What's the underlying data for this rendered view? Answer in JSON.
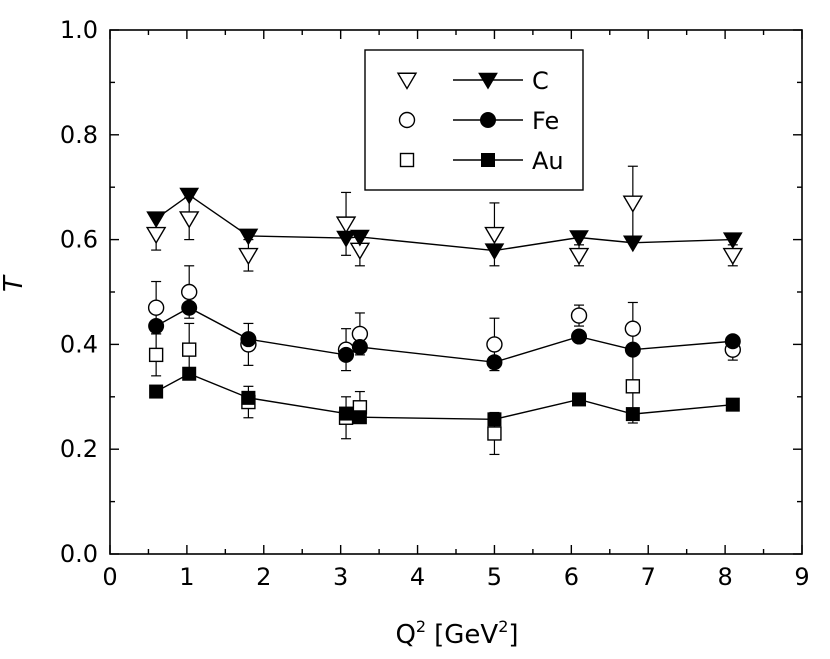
{
  "chart_data": {
    "type": "scatter",
    "xlabel": "Q",
    "xlabel_sup": "2",
    "xlabel_unit_open": "[GeV",
    "xlabel_unit_sup": "2",
    "xlabel_unit_close": "]",
    "ylabel": "T",
    "xlim": [
      0,
      9
    ],
    "ylim": [
      0.0,
      1.0
    ],
    "x_ticks": [
      "0",
      "1",
      "2",
      "3",
      "4",
      "5",
      "6",
      "7",
      "8",
      "9"
    ],
    "y_ticks": [
      "0.0",
      "0.2",
      "0.4",
      "0.6",
      "0.8",
      "1.0"
    ],
    "legend_position": "top-center",
    "grid": false,
    "series": [
      {
        "name": "C",
        "open_marker": "triangle-down",
        "filled_marker": "triangle-down",
        "open": [
          {
            "x": 0.6,
            "y": 0.61,
            "err": 0.03
          },
          {
            "x": 1.03,
            "y": 0.64,
            "err": 0.04
          },
          {
            "x": 1.8,
            "y": 0.57,
            "err": 0.03
          },
          {
            "x": 3.07,
            "y": 0.63,
            "err": 0.06
          },
          {
            "x": 3.25,
            "y": 0.58,
            "err": 0.03
          },
          {
            "x": 5.0,
            "y": 0.61,
            "err": 0.06
          },
          {
            "x": 6.1,
            "y": 0.57,
            "err": 0.02
          },
          {
            "x": 6.8,
            "y": 0.67,
            "err": 0.07
          },
          {
            "x": 8.1,
            "y": 0.57,
            "err": 0.02
          }
        ],
        "filled": [
          {
            "x": 0.6,
            "y": 0.64
          },
          {
            "x": 1.03,
            "y": 0.685
          },
          {
            "x": 1.8,
            "y": 0.607
          },
          {
            "x": 3.07,
            "y": 0.603
          },
          {
            "x": 3.25,
            "y": 0.605
          },
          {
            "x": 5.0,
            "y": 0.579
          },
          {
            "x": 6.1,
            "y": 0.604
          },
          {
            "x": 6.8,
            "y": 0.594
          },
          {
            "x": 8.1,
            "y": 0.6
          }
        ]
      },
      {
        "name": "Fe",
        "open_marker": "circle",
        "filled_marker": "circle",
        "open": [
          {
            "x": 0.6,
            "y": 0.47,
            "err": 0.05
          },
          {
            "x": 1.03,
            "y": 0.5,
            "err": 0.05
          },
          {
            "x": 1.8,
            "y": 0.4,
            "err": 0.04
          },
          {
            "x": 3.07,
            "y": 0.39,
            "err": 0.04
          },
          {
            "x": 3.25,
            "y": 0.42,
            "err": 0.04
          },
          {
            "x": 5.0,
            "y": 0.4,
            "err": 0.05
          },
          {
            "x": 6.1,
            "y": 0.455,
            "err": 0.02
          },
          {
            "x": 6.8,
            "y": 0.43,
            "err": 0.05
          },
          {
            "x": 8.1,
            "y": 0.39,
            "err": 0.02
          }
        ],
        "filled": [
          {
            "x": 0.6,
            "y": 0.435
          },
          {
            "x": 1.03,
            "y": 0.47
          },
          {
            "x": 1.8,
            "y": 0.41
          },
          {
            "x": 3.07,
            "y": 0.38
          },
          {
            "x": 3.25,
            "y": 0.395
          },
          {
            "x": 5.0,
            "y": 0.366
          },
          {
            "x": 6.1,
            "y": 0.415
          },
          {
            "x": 6.8,
            "y": 0.39
          },
          {
            "x": 8.1,
            "y": 0.406
          }
        ]
      },
      {
        "name": "Au",
        "open_marker": "square",
        "filled_marker": "square",
        "open": [
          {
            "x": 0.6,
            "y": 0.38,
            "err": 0.04
          },
          {
            "x": 1.03,
            "y": 0.39,
            "err": 0.05
          },
          {
            "x": 1.8,
            "y": 0.29,
            "err": 0.03
          },
          {
            "x": 3.07,
            "y": 0.26,
            "err": 0.04
          },
          {
            "x": 3.25,
            "y": 0.28,
            "err": 0.03
          },
          {
            "x": 5.0,
            "y": 0.23,
            "err": 0.04
          },
          {
            "x": 6.8,
            "y": 0.32,
            "err": 0.07
          }
        ],
        "filled": [
          {
            "x": 0.6,
            "y": 0.31
          },
          {
            "x": 1.03,
            "y": 0.344
          },
          {
            "x": 1.8,
            "y": 0.298
          },
          {
            "x": 3.07,
            "y": 0.268
          },
          {
            "x": 3.25,
            "y": 0.261
          },
          {
            "x": 5.0,
            "y": 0.257
          },
          {
            "x": 6.1,
            "y": 0.295
          },
          {
            "x": 6.8,
            "y": 0.267
          },
          {
            "x": 8.1,
            "y": 0.285
          }
        ]
      }
    ]
  }
}
